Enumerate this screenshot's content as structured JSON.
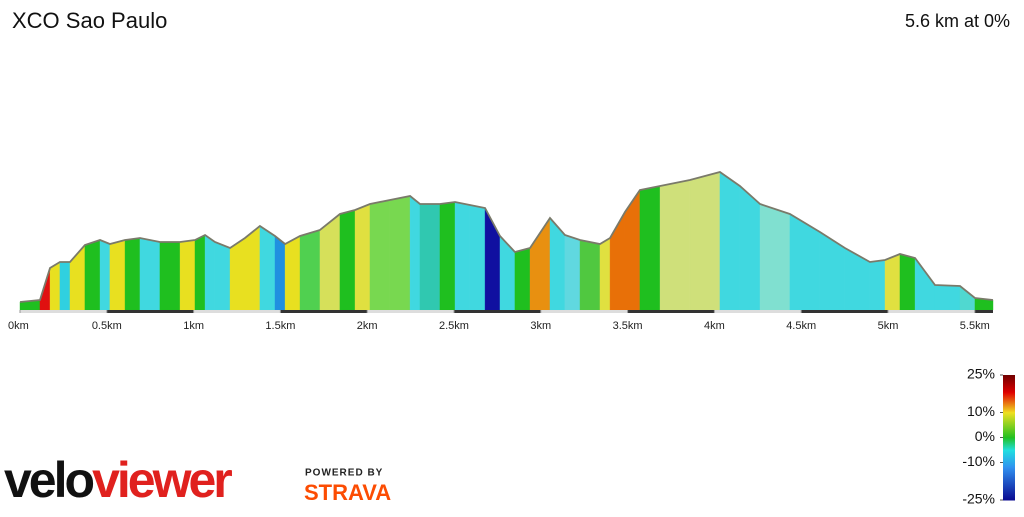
{
  "chart_data": {
    "type": "elevation",
    "title": "XCO Sao Paulo",
    "subtitle": "5.6 km at 0%",
    "x": [
      0,
      0.115,
      0.173,
      0.23,
      0.288,
      0.374,
      0.461,
      0.518,
      0.605,
      0.691,
      0.806,
      0.922,
      1.008,
      1.066,
      1.123,
      1.21,
      1.296,
      1.382,
      1.469,
      1.527,
      1.613,
      1.728,
      1.843,
      1.93,
      2.016,
      2.131,
      2.247,
      2.304,
      2.419,
      2.506,
      2.592,
      2.679,
      2.765,
      2.851,
      2.938,
      3.053,
      3.139,
      3.226,
      3.341,
      3.399,
      3.485,
      3.571,
      3.687,
      3.859,
      4.032,
      4.147,
      4.263,
      4.435,
      4.608,
      4.752,
      4.896,
      4.983,
      5.069,
      5.156,
      5.271,
      5.415,
      5.501,
      5.605
    ],
    "values": [
      8,
      10,
      42,
      48,
      48,
      65,
      70,
      66,
      70,
      72,
      68,
      68,
      70,
      75,
      68,
      62,
      72,
      84,
      74,
      66,
      74,
      80,
      96,
      100,
      106,
      110,
      114,
      106,
      106,
      108,
      105,
      102,
      74,
      58,
      62,
      92,
      75,
      70,
      66,
      72,
      98,
      120,
      124,
      130,
      138,
      124,
      106,
      96,
      78,
      62,
      48,
      50,
      56,
      52,
      25,
      24,
      12,
      10
    ],
    "segment_colors": [
      "#1fbf1f",
      "#e01010",
      "#e8e020",
      "#30d0e0",
      "#e8e020",
      "#1fbf1f",
      "#40d8e0",
      "#e8e020",
      "#1fbf1f",
      "#40d8e0",
      "#1fbf1f",
      "#e8e020",
      "#1fbf1f",
      "#40d8e0",
      "#40d8e0",
      "#e8e020",
      "#e8e020",
      "#40d8e0",
      "#2090e0",
      "#e8e020",
      "#50d050",
      "#d6e05a",
      "#1fbf1f",
      "#e0e040",
      "#78d850",
      "#78d850",
      "#40d8e0",
      "#30c8b0",
      "#1fbf1f",
      "#40d8e0",
      "#40d8e0",
      "#1010a0",
      "#40d8e0",
      "#1fbf1f",
      "#e89010",
      "#40d8e0",
      "#60d8e0",
      "#50c840",
      "#e0e040",
      "#e87008",
      "#e87008",
      "#1fbf1f",
      "#cfe07a",
      "#cfe07a",
      "#40d8e0",
      "#40d8e0",
      "#80e0d0",
      "#40d8e0",
      "#40d8e0",
      "#40d8e0",
      "#40d8e0",
      "#e0e040",
      "#1fbf1f",
      "#40d8e0",
      "#40d8e0",
      "#50d8d0",
      "#1fbf1f"
    ],
    "xlim": [
      0,
      5.605
    ],
    "ylim": [
      0,
      140
    ],
    "xticks": [
      {
        "value": 0,
        "label": "0km"
      },
      {
        "value": 0.5,
        "label": "0.5km"
      },
      {
        "value": 1,
        "label": "1km"
      },
      {
        "value": 1.5,
        "label": "1.5km"
      },
      {
        "value": 2,
        "label": "2km"
      },
      {
        "value": 2.5,
        "label": "2.5km"
      },
      {
        "value": 3,
        "label": "3km"
      },
      {
        "value": 3.5,
        "label": "3.5km"
      },
      {
        "value": 4,
        "label": "4km"
      },
      {
        "value": 4.5,
        "label": "4.5km"
      },
      {
        "value": 5,
        "label": "5km"
      },
      {
        "value": 5.5,
        "label": "5.5km"
      }
    ],
    "colorbar": {
      "lim": [
        -25,
        25
      ],
      "ticks": [
        {
          "value": 25,
          "label": "25%"
        },
        {
          "value": 10,
          "label": "10%"
        },
        {
          "value": 0,
          "label": "0%"
        },
        {
          "value": -10,
          "label": "-10%"
        },
        {
          "value": -25,
          "label": "-25%"
        }
      ],
      "stops": [
        {
          "value": 25,
          "color": "#700000"
        },
        {
          "value": 18,
          "color": "#e00000"
        },
        {
          "value": 10,
          "color": "#f0e020"
        },
        {
          "value": 0,
          "color": "#20c020"
        },
        {
          "value": -5,
          "color": "#20e0e0"
        },
        {
          "value": -12,
          "color": "#3090f0"
        },
        {
          "value": -25,
          "color": "#0a0a90"
        }
      ]
    }
  },
  "logo": {
    "part_1": "velo",
    "part_2": "viewer",
    "powered_by": "POWERED BY",
    "brand": "STRAVA"
  }
}
